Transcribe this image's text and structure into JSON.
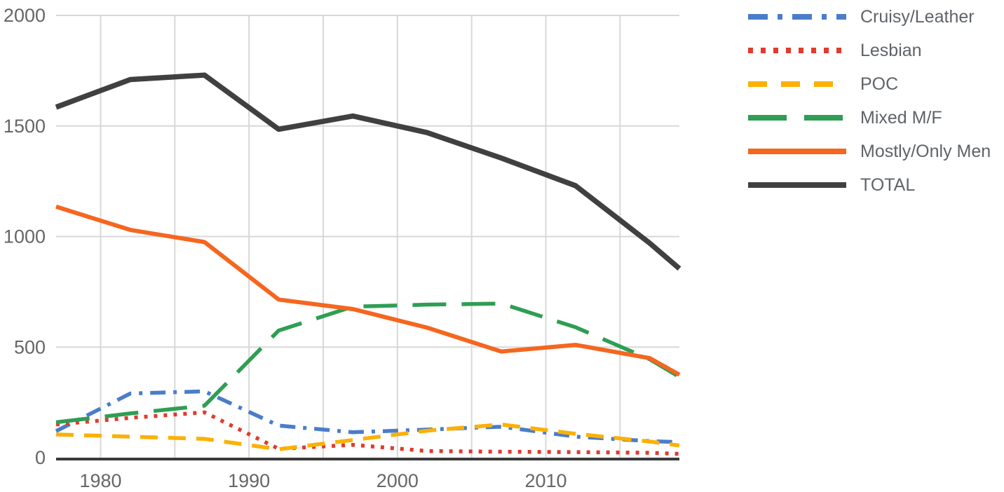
{
  "chart_data": {
    "type": "line",
    "title": "",
    "xlabel": "",
    "ylabel": "",
    "x": [
      1977,
      1982,
      1987,
      1992,
      1997,
      2002,
      2007,
      2012,
      2017,
      2019
    ],
    "series": [
      {
        "name": "Cruisy/Leather",
        "color": "#4a7dc9",
        "width": 5.5,
        "dash": "22 11 5 11",
        "legend_dash": "28 14 7 14",
        "values": [
          120,
          290,
          300,
          145,
          115,
          127,
          140,
          95,
          75,
          70
        ]
      },
      {
        "name": "Lesbian",
        "color": "#e23a2e",
        "width": 5.5,
        "dash": "5 9",
        "legend_dash": "7 11",
        "values": [
          150,
          180,
          205,
          40,
          58,
          30,
          27,
          25,
          22,
          17
        ]
      },
      {
        "name": "POC",
        "color": "#fbb104",
        "width": 5.5,
        "dash": "25 15",
        "legend_dash": "27 20",
        "values": [
          105,
          95,
          85,
          38,
          80,
          122,
          150,
          108,
          73,
          55
        ]
      },
      {
        "name": "Mixed M/F",
        "color": "#2e9e53",
        "width": 5.5,
        "dash": "48 22",
        "legend_dash": "55 25",
        "values": [
          160,
          200,
          235,
          575,
          683,
          692,
          697,
          590,
          445,
          365
        ]
      },
      {
        "name": "Mostly/Only Men",
        "color": "#f5661f",
        "width": 6,
        "dash": "",
        "legend_dash": "",
        "values": [
          1135,
          1030,
          975,
          715,
          672,
          588,
          480,
          510,
          450,
          375
        ]
      },
      {
        "name": "TOTAL",
        "color": "#404040",
        "width": 7.5,
        "dash": "",
        "legend_dash": "",
        "values": [
          1585,
          1710,
          1730,
          1485,
          1545,
          1470,
          1355,
          1230,
          970,
          855
        ]
      }
    ],
    "x_axis": {
      "range": [
        1977,
        2019
      ],
      "tick_years": [
        1980,
        1990,
        2000,
        2010
      ],
      "tick_labels": [
        "1980",
        "1990",
        "2000",
        "2010"
      ],
      "gridline_years": [
        1980,
        1985,
        1990,
        1995,
        2000,
        2005,
        2010,
        2015
      ]
    },
    "y_axis": {
      "range": [
        0,
        2000
      ],
      "ticks": [
        0,
        500,
        1000,
        1500,
        2000
      ],
      "tick_labels": [
        "0",
        "500",
        "1000",
        "1500",
        "2000"
      ]
    },
    "grid": true,
    "legend_position": "right"
  },
  "colors": {
    "background": "#ffffff",
    "gridline": "#d8d8d8",
    "axis_line": "#3a3a3a",
    "tick_text": "#666666",
    "legend_text": "#5f6368"
  }
}
